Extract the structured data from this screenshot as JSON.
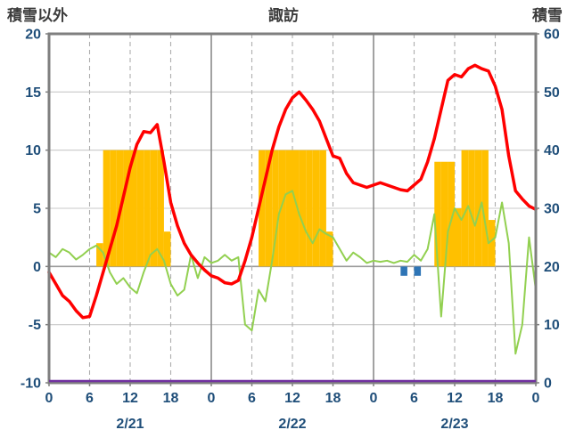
{
  "chart_data": {
    "type": "line",
    "title": "諏訪",
    "left_axis": {
      "label": "積雪以外",
      "min": -10,
      "max": 20,
      "tick_step": 5,
      "tick_labels": [
        "20",
        "15",
        "10",
        "5",
        "0",
        "-5",
        "-10"
      ]
    },
    "right_axis": {
      "label": "積雪",
      "min": 0,
      "max": 60,
      "tick_step": 10,
      "tick_labels": [
        "60",
        "50",
        "40",
        "30",
        "20",
        "10",
        "0"
      ]
    },
    "x_axis": {
      "hours_total": 72,
      "grid_interval": 6,
      "tick_labels": [
        "0",
        "6",
        "12",
        "18",
        "0",
        "6",
        "12",
        "18",
        "0",
        "6",
        "12",
        "18",
        "0"
      ],
      "day_labels": [
        "2/21",
        "2/22",
        "2/23"
      ],
      "day_boundaries": [
        24,
        48
      ]
    },
    "colors": {
      "frame": "#7F7F7F",
      "grid": "#C8C8C8",
      "zero_line": "#9A9A9A",
      "dashed_grid": "#ADADAD",
      "day_boundary": "#8A8A8A",
      "tick_text": "#1F4E79",
      "title_text": "#3B3B3B",
      "plot_bg": "#FFFFFF"
    },
    "series": {
      "temperature_line": {
        "type": "line",
        "axis": "left",
        "color": "#FF0000",
        "stroke_width": 3.5,
        "values": [
          -0.5,
          -1.5,
          -2.5,
          -3,
          -3.8,
          -4.4,
          -4.3,
          -2.5,
          -0.5,
          1.5,
          3.5,
          6,
          8.5,
          10.5,
          11.6,
          11.5,
          12.2,
          9,
          5.5,
          3.5,
          2,
          1,
          0.3,
          -0.3,
          -0.8,
          -1.0,
          -1.4,
          -1.5,
          -1.2,
          0.5,
          2.5,
          5,
          7.5,
          10,
          12,
          13.5,
          14.5,
          15.0,
          14.3,
          13.5,
          12.5,
          11,
          9.5,
          9.3,
          8,
          7.2,
          7.0,
          6.8,
          7.0,
          7.2,
          7.0,
          6.8,
          6.6,
          6.5,
          7.0,
          7.5,
          9,
          11,
          13.5,
          16,
          16.5,
          16.3,
          17.0,
          17.3,
          17.0,
          16.8,
          15.5,
          13.5,
          9.5,
          6.5,
          5.8,
          5.2,
          4.9
        ]
      },
      "green_line": {
        "type": "line",
        "axis": "left",
        "color": "#92D050",
        "stroke_width": 2,
        "values": [
          1.2,
          0.8,
          1.5,
          1.2,
          0.6,
          1.0,
          1.5,
          1.8,
          1.2,
          -0.5,
          -1.5,
          -1.0,
          -1.8,
          -2.3,
          -0.5,
          1.0,
          1.5,
          0.5,
          -1.5,
          -2.5,
          -2.0,
          1.0,
          -1.0,
          0.8,
          0.3,
          0.5,
          1.0,
          0.5,
          0.8,
          -5.0,
          -5.5,
          -2.0,
          -3.0,
          0.5,
          4.5,
          6.2,
          6.5,
          4.5,
          3.0,
          2.0,
          3.2,
          2.8,
          2.5,
          1.5,
          0.5,
          1.2,
          0.8,
          0.3,
          0.5,
          0.4,
          0.5,
          0.3,
          0.5,
          0.4,
          1.0,
          0.5,
          1.5,
          4.5,
          -4.3,
          3.0,
          5.0,
          4.0,
          5.2,
          3.5,
          5.5,
          2.0,
          2.5,
          5.5,
          2.0,
          -7.5,
          -5.0,
          2.5,
          -2.0
        ]
      },
      "sunshine_bars": {
        "type": "bar",
        "axis": "left",
        "color": "#FFC000",
        "values": [
          0,
          0,
          0,
          0,
          0,
          0,
          0,
          2,
          10,
          10,
          10,
          10,
          10,
          10,
          10,
          10,
          10,
          3,
          0,
          0,
          0,
          0,
          0,
          0,
          0,
          0,
          0,
          0,
          0,
          0,
          0,
          10,
          10,
          10,
          10,
          10,
          10,
          10,
          10,
          10,
          10,
          3,
          0,
          0,
          0,
          0,
          0,
          0,
          0,
          0,
          0,
          0,
          0,
          0,
          0,
          0,
          0,
          9,
          9,
          9,
          5,
          10,
          10,
          10,
          10,
          4,
          0,
          0,
          0,
          0,
          0,
          0
        ]
      },
      "precip_bars": {
        "type": "bar",
        "axis": "left",
        "color": "#2E75B6",
        "values": [
          0,
          0,
          0,
          0,
          0,
          0,
          0,
          0,
          0,
          0,
          0,
          0,
          0,
          0,
          0,
          0,
          0,
          0,
          0,
          0,
          0,
          0,
          0,
          0,
          0,
          0,
          0,
          0,
          0,
          0,
          0,
          0,
          0,
          0,
          0,
          0,
          0,
          0,
          0,
          0,
          0,
          0,
          0,
          0,
          0,
          0,
          0,
          0,
          0,
          0,
          0,
          0,
          -0.8,
          0,
          -0.8,
          0,
          0,
          0,
          0,
          0,
          0,
          0,
          0,
          0,
          0,
          0,
          0,
          0,
          0,
          0,
          0,
          0
        ]
      },
      "snow_depth_line": {
        "type": "line",
        "axis": "right",
        "color": "#7030A0",
        "stroke_width": 2.5,
        "constant_value": 0
      }
    }
  }
}
